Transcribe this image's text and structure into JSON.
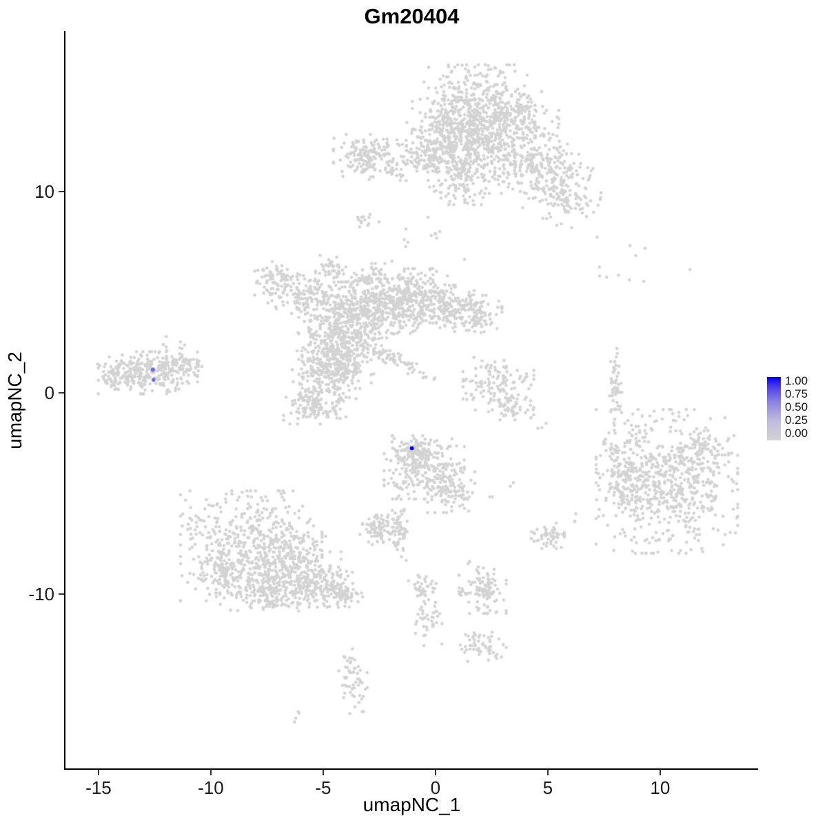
{
  "title": "Gm20404",
  "axes": {
    "x": {
      "label": "umapNC_1",
      "ticks": [
        -15,
        -10,
        -5,
        0,
        5,
        10
      ]
    },
    "y": {
      "label": "umapNC_2",
      "ticks": [
        10,
        0,
        -10
      ]
    }
  },
  "legend": {
    "labels": [
      "1.00",
      "0.75",
      "0.50",
      "0.25",
      "0.00"
    ],
    "high_color": "#0000FF",
    "low_color": "#D3D3D3"
  },
  "chart_data": {
    "type": "scatter",
    "title": "Gm20404",
    "xlabel": "umapNC_1",
    "ylabel": "umapNC_2",
    "xlim": [
      -16.47,
      14.36
    ],
    "ylim": [
      -18.66,
      17.98
    ],
    "grid": false,
    "legend_position": "right",
    "point_color_low": "#D3D3D3",
    "point_color_high": "#0000FF",
    "point_radius": 2.3,
    "seed": 42,
    "blob_format": "[center_x, center_y, sd_x, sd_y, n_points, rotation_deg]",
    "blobs": [
      [
        1.7,
        14.2,
        1.3,
        1.0,
        420,
        0
      ],
      [
        1.0,
        13.0,
        0.8,
        0.8,
        180,
        0
      ],
      [
        2.3,
        11.8,
        1.1,
        0.9,
        260,
        0
      ],
      [
        3.6,
        13.5,
        0.9,
        0.7,
        150,
        0
      ],
      [
        4.8,
        11.2,
        1.0,
        0.7,
        200,
        -20
      ],
      [
        5.7,
        9.6,
        0.7,
        0.6,
        110,
        -30
      ],
      [
        -1.6,
        11.6,
        1.4,
        0.5,
        180,
        0
      ],
      [
        -3.2,
        11.9,
        0.5,
        0.45,
        80,
        0
      ],
      [
        0.0,
        12.2,
        0.7,
        0.6,
        100,
        0
      ],
      [
        1.0,
        10.4,
        0.6,
        0.5,
        70,
        0
      ],
      [
        -0.6,
        7.6,
        0.9,
        0.7,
        12,
        0
      ],
      [
        -3.1,
        8.6,
        0.28,
        0.22,
        14,
        0
      ],
      [
        -4.3,
        3.2,
        0.85,
        1.1,
        320,
        0
      ],
      [
        -3.3,
        4.2,
        0.8,
        0.7,
        200,
        0
      ],
      [
        -2.0,
        4.4,
        0.9,
        0.7,
        220,
        0
      ],
      [
        -0.8,
        4.7,
        0.8,
        0.7,
        200,
        0
      ],
      [
        0.5,
        4.2,
        0.8,
        0.55,
        150,
        0
      ],
      [
        1.7,
        3.9,
        0.6,
        0.45,
        90,
        0
      ],
      [
        -5.9,
        5.0,
        0.8,
        0.55,
        130,
        -15
      ],
      [
        -7.1,
        5.7,
        0.45,
        0.4,
        60,
        0
      ],
      [
        -4.9,
        0.9,
        0.7,
        1.0,
        240,
        0
      ],
      [
        -5.5,
        -0.5,
        0.6,
        0.5,
        110,
        0
      ],
      [
        -4.0,
        1.9,
        0.6,
        0.8,
        150,
        0
      ],
      [
        -1.9,
        1.7,
        1.0,
        0.16,
        70,
        -28
      ],
      [
        -4.6,
        6.2,
        0.35,
        0.3,
        40,
        0
      ],
      [
        -2.9,
        5.8,
        0.4,
        0.3,
        40,
        0
      ],
      [
        -12.8,
        1.0,
        1.05,
        0.5,
        260,
        0
      ],
      [
        -11.3,
        1.4,
        0.5,
        0.3,
        60,
        0
      ],
      [
        -14.3,
        0.8,
        0.35,
        0.3,
        40,
        0
      ],
      [
        -11.7,
        2.5,
        0.4,
        0.25,
        8,
        0
      ],
      [
        2.8,
        0.4,
        0.75,
        0.65,
        120,
        0
      ],
      [
        3.4,
        -0.8,
        0.5,
        0.3,
        40,
        0
      ],
      [
        8.0,
        0.1,
        0.14,
        1.0,
        55,
        0
      ],
      [
        8.6,
        6.3,
        1.3,
        0.9,
        11,
        0
      ],
      [
        10.3,
        -4.4,
        1.5,
        1.7,
        650,
        0
      ],
      [
        8.3,
        -4.2,
        0.5,
        0.8,
        90,
        0
      ],
      [
        12.0,
        -2.8,
        0.5,
        0.5,
        60,
        0
      ],
      [
        8.5,
        -2.6,
        0.4,
        0.3,
        8,
        0
      ],
      [
        -0.5,
        -3.7,
        0.85,
        0.75,
        260,
        0
      ],
      [
        0.7,
        -4.9,
        0.5,
        0.5,
        90,
        0
      ],
      [
        -1.0,
        -2.9,
        0.4,
        0.3,
        60,
        0
      ],
      [
        -1.6,
        -6.6,
        0.16,
        0.9,
        55,
        0
      ],
      [
        -2.5,
        -6.8,
        0.45,
        0.35,
        90,
        0
      ],
      [
        5.0,
        -7.1,
        0.35,
        0.3,
        55,
        0
      ],
      [
        -8.2,
        -7.6,
        1.5,
        1.3,
        520,
        0
      ],
      [
        -6.3,
        -8.8,
        1.0,
        0.8,
        240,
        0
      ],
      [
        -5.0,
        -9.6,
        0.7,
        0.5,
        130,
        0
      ],
      [
        -4.0,
        -10.1,
        0.4,
        0.3,
        50,
        0
      ],
      [
        -7.5,
        -9.9,
        1.0,
        0.45,
        140,
        0
      ],
      [
        -9.5,
        -8.9,
        0.6,
        0.5,
        90,
        0
      ],
      [
        2.1,
        -9.6,
        0.5,
        0.65,
        110,
        0
      ],
      [
        -0.6,
        -9.6,
        0.3,
        0.5,
        40,
        0
      ],
      [
        -0.3,
        -11.4,
        0.28,
        0.55,
        35,
        0
      ],
      [
        2.1,
        -12.5,
        0.5,
        0.4,
        55,
        0
      ],
      [
        -3.6,
        -14.3,
        0.3,
        0.75,
        55,
        10
      ],
      [
        -6.2,
        -16.1,
        0.18,
        0.12,
        4,
        0
      ],
      [
        2.6,
        -5.1,
        0.1,
        0.1,
        2,
        0
      ],
      [
        6.4,
        -6.2,
        0.15,
        0.1,
        3,
        0
      ],
      [
        4.6,
        -1.5,
        0.2,
        0.15,
        3,
        0
      ],
      [
        3.5,
        -4.6,
        0.1,
        0.1,
        2,
        0
      ]
    ],
    "highlight_points": [
      {
        "x": -1.05,
        "y": -2.75,
        "value": 1.0
      },
      {
        "x": -12.58,
        "y": 1.15,
        "value": 0.5
      },
      {
        "x": -12.55,
        "y": 0.65,
        "value": 0.5
      }
    ]
  }
}
